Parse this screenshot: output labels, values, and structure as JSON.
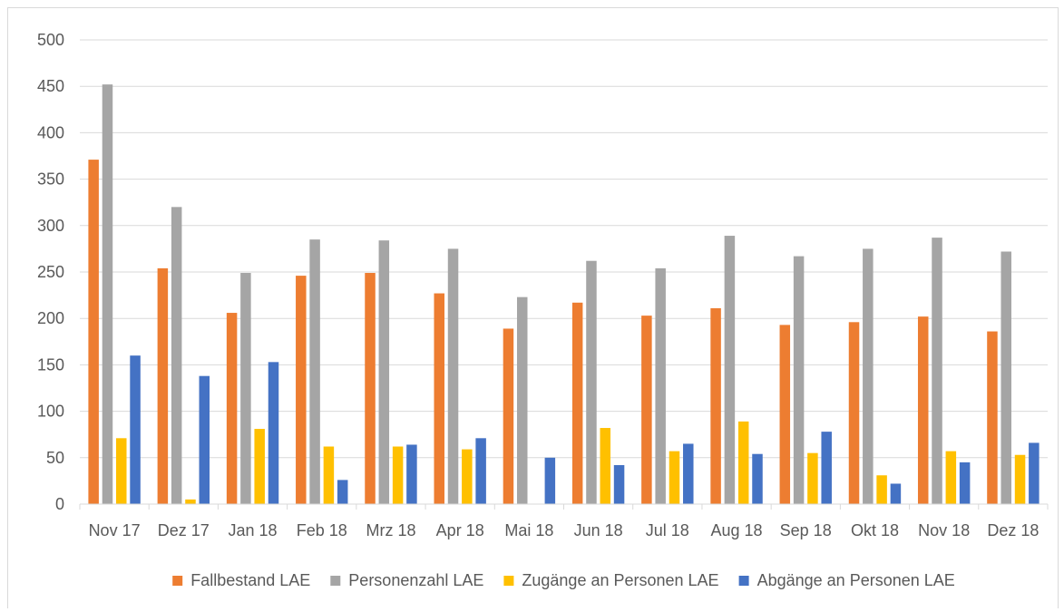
{
  "chart_data": {
    "type": "bar",
    "title": "",
    "xlabel": "",
    "ylabel": "",
    "ylim": [
      0,
      500
    ],
    "yticks": [
      0,
      50,
      100,
      150,
      200,
      250,
      300,
      350,
      400,
      450,
      500
    ],
    "grid": true,
    "legend_position": "bottom",
    "categories": [
      "Nov 17",
      "Dez 17",
      "Jan 18",
      "Feb 18",
      "Mrz 18",
      "Apr 18",
      "Mai 18",
      "Jun 18",
      "Jul 18",
      "Aug 18",
      "Sep 18",
      "Okt 18",
      "Nov 18",
      "Dez 18"
    ],
    "series": [
      {
        "name": "Fallbestand LAE",
        "color": "#ed7d31",
        "values": [
          371,
          254,
          206,
          246,
          249,
          227,
          189,
          217,
          203,
          211,
          193,
          196,
          202,
          186
        ]
      },
      {
        "name": "Personenzahl LAE",
        "color": "#a5a5a5",
        "values": [
          452,
          320,
          249,
          285,
          284,
          275,
          223,
          262,
          254,
          289,
          267,
          275,
          287,
          272
        ]
      },
      {
        "name": "Zugänge an Personen LAE",
        "color": "#ffc000",
        "values": [
          71,
          5,
          81,
          62,
          62,
          59,
          0,
          82,
          57,
          89,
          55,
          31,
          57,
          53
        ]
      },
      {
        "name": "Abgänge an Personen LAE",
        "color": "#4472c4",
        "values": [
          160,
          138,
          153,
          26,
          64,
          71,
          50,
          42,
          65,
          54,
          78,
          22,
          45,
          66
        ]
      }
    ]
  }
}
